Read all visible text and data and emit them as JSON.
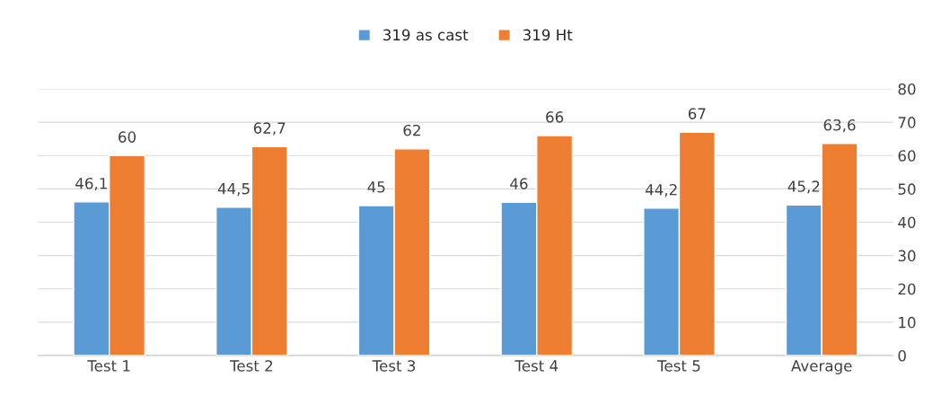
{
  "chart_data": {
    "type": "bar",
    "categories": [
      "Test 1",
      "Test 2",
      "Test 3",
      "Test 4",
      "Test 5",
      "Average"
    ],
    "series": [
      {
        "name": "319 as cast",
        "color": "#5b9bd5",
        "values": [
          46.1,
          44.5,
          45,
          46,
          44.2,
          45.2
        ],
        "value_labels": [
          "46,1",
          "44,5",
          "45",
          "46",
          "44,2",
          "45,2"
        ]
      },
      {
        "name": "319 Ht",
        "color": "#ed7d31",
        "values": [
          60,
          62.7,
          62,
          66,
          67,
          63.6
        ],
        "value_labels": [
          "60",
          "62,7",
          "62",
          "66",
          "67",
          "63,6"
        ]
      }
    ],
    "ylim": [
      0,
      80
    ],
    "yticks": [
      0,
      10,
      20,
      30,
      40,
      50,
      60,
      70,
      80
    ],
    "grid": "y",
    "legend": "top"
  }
}
